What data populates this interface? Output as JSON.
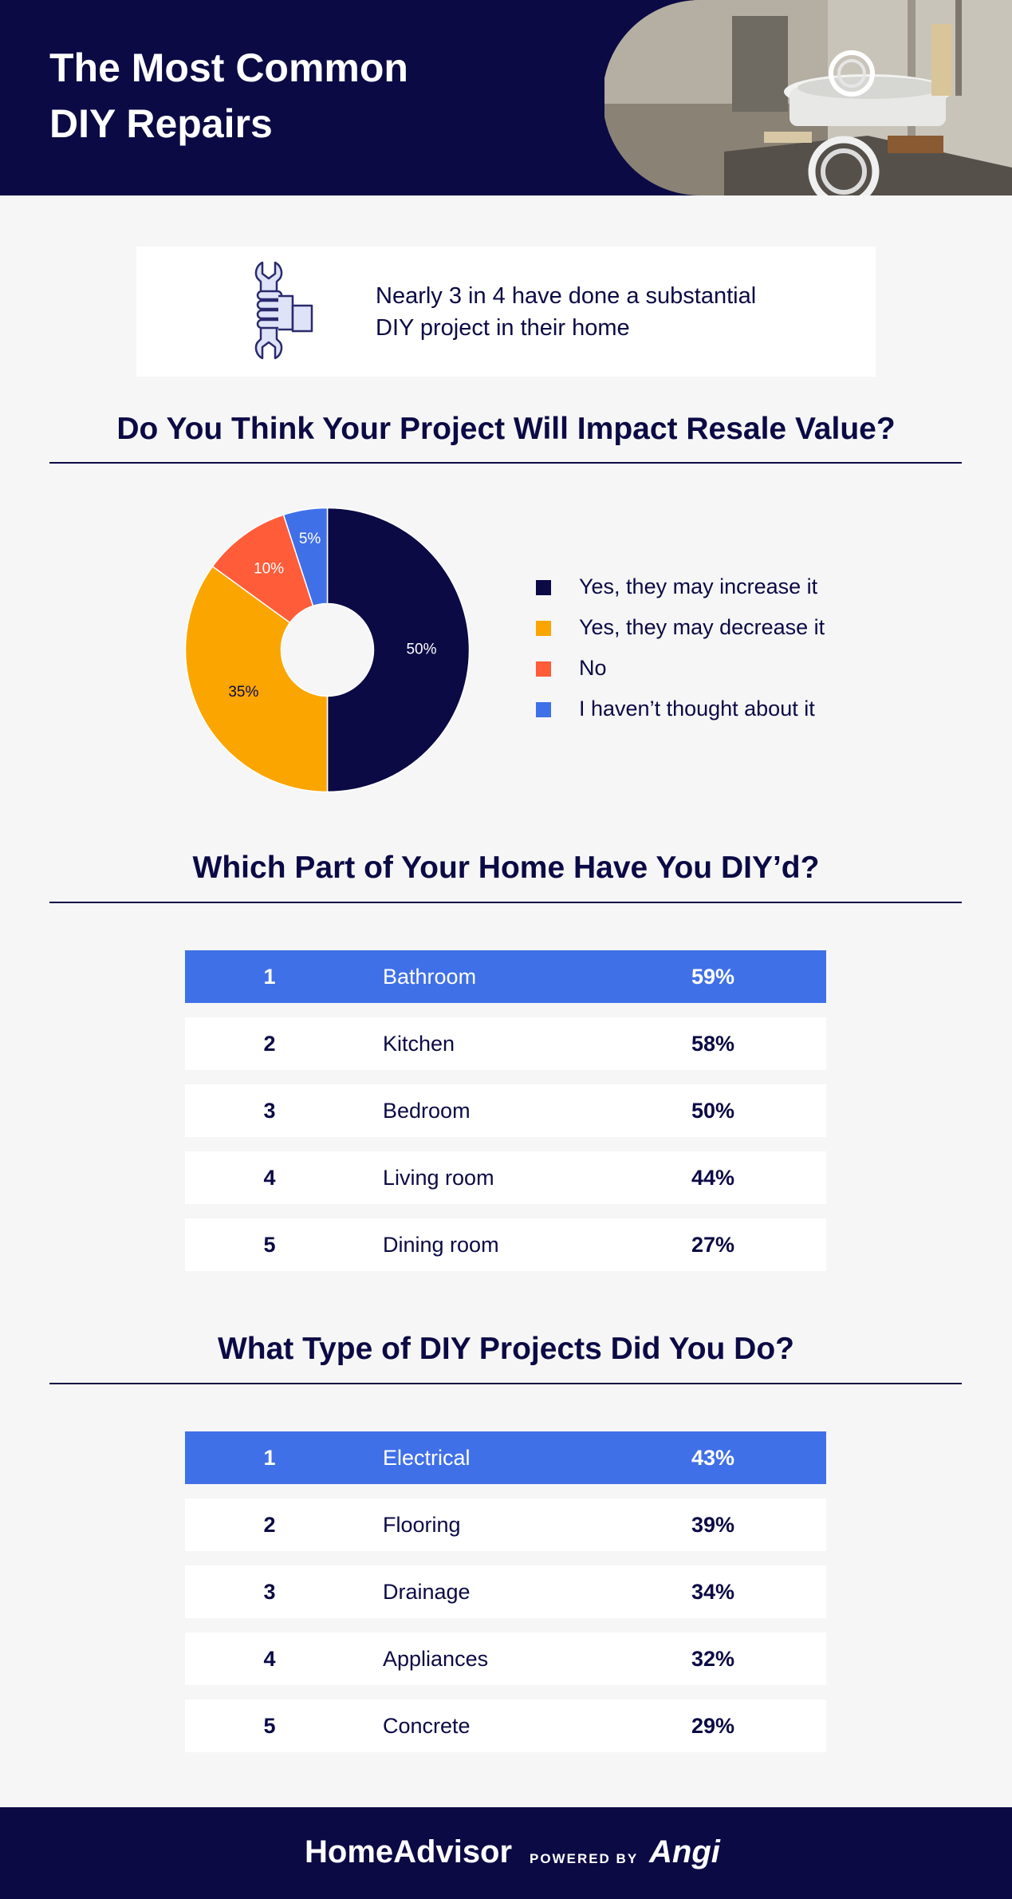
{
  "header": {
    "title_line1": "The Most Common",
    "title_line2": "DIY Repairs"
  },
  "stat_card": {
    "line1": "Nearly 3 in 4 have done a substantial",
    "line2": "DIY  project in their home",
    "icon": "hand-holding-wrench-icon"
  },
  "resale_section": {
    "title": "Do You Think Your Project Will Impact Resale Value?"
  },
  "chart_data": [
    {
      "type": "pie",
      "title": "Do You Think Your Project Will Impact Resale Value?",
      "donut": true,
      "legend_position": "right",
      "slices": [
        {
          "label": "Yes, they may increase it",
          "value": 50,
          "display": "50%",
          "color": "#0b0a45"
        },
        {
          "label": "Yes, they may decrease it",
          "value": 35,
          "display": "35%",
          "color": "#fba500"
        },
        {
          "label": "No",
          "value": 10,
          "display": "10%",
          "color": "#ff5c39"
        },
        {
          "label": "I haven’t thought about it",
          "value": 5,
          "display": "5%",
          "color": "#4070e8"
        }
      ]
    },
    {
      "type": "table",
      "title": "Which Part of Your Home Have You DIY’d?",
      "rows": [
        {
          "rank": "1",
          "name": "Bathroom",
          "pct": "59%"
        },
        {
          "rank": "2",
          "name": "Kitchen",
          "pct": "58%"
        },
        {
          "rank": "3",
          "name": "Bedroom",
          "pct": "50%"
        },
        {
          "rank": "4",
          "name": "Living room",
          "pct": "44%"
        },
        {
          "rank": "5",
          "name": "Dining room",
          "pct": "27%"
        }
      ]
    },
    {
      "type": "table",
      "title": "What Type of DIY Projects Did You Do?",
      "rows": [
        {
          "rank": "1",
          "name": "Electrical",
          "pct": "43%"
        },
        {
          "rank": "2",
          "name": "Flooring",
          "pct": "39%"
        },
        {
          "rank": "3",
          "name": "Drainage",
          "pct": "34%"
        },
        {
          "rank": "4",
          "name": "Appliances",
          "pct": "32%"
        },
        {
          "rank": "5",
          "name": "Concrete",
          "pct": "29%"
        }
      ]
    }
  ],
  "rooms_section": {
    "title": "Which Part of Your Home Have You DIY’d?"
  },
  "projects_section": {
    "title": "What Type of DIY Projects Did You Do?"
  },
  "footer": {
    "brand": "HomeAdvisor",
    "powered_by": "POWERED BY",
    "partner": "Angi"
  },
  "colors": {
    "navy": "#0b0a45",
    "highlight_blue": "#4070e8",
    "background": "#f6f6f6"
  }
}
